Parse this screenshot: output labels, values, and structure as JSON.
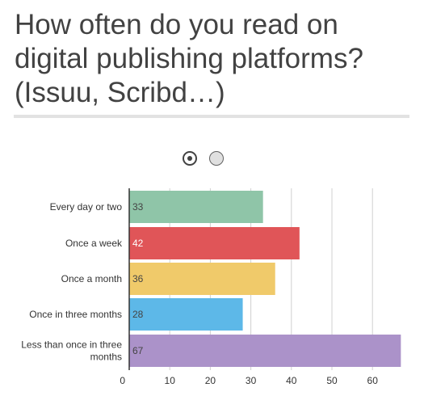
{
  "title": "How often do you read on digital publishing platforms? (Issuu, Scribd…)",
  "pager": {
    "total": 2,
    "active": 0
  },
  "chart_data": {
    "type": "bar",
    "orientation": "horizontal",
    "categories": [
      [
        "Every day or two"
      ],
      [
        "Once a week"
      ],
      [
        "Once a month"
      ],
      [
        "Once in three months"
      ],
      [
        "Less than once in three",
        "months"
      ]
    ],
    "values": [
      33,
      42,
      36,
      28,
      67
    ],
    "colors": [
      "#8fc5a8",
      "#e05558",
      "#f0ca6a",
      "#5db8e8",
      "#ab92c9"
    ],
    "value_label_colors": [
      "#444444",
      "#ffffff",
      "#444444",
      "#444444",
      "#444444"
    ],
    "xticks": [
      0,
      10,
      20,
      30,
      40,
      50,
      60
    ],
    "xlim": [
      0,
      68
    ],
    "grid": true,
    "legend": "none"
  }
}
